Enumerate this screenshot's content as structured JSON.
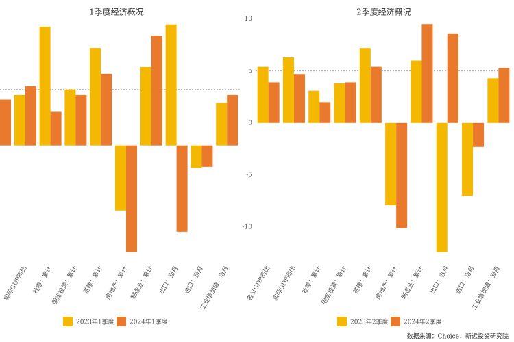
{
  "chart_data": [
    {
      "type": "bar",
      "title": "1季度经济概况",
      "categories": [
        null,
        "实际GDP同比",
        "社零：累计",
        "固定投资：累计",
        "基建：累计",
        "房地产：累计",
        "制造业：累计",
        "出口：当月",
        "进口：当月",
        "工业增加值：当月"
      ],
      "series": [
        {
          "name": "2023年1季度",
          "color": "#f5b800",
          "values": [
            null,
            4.5,
            10.6,
            5.0,
            8.7,
            -5.8,
            7.0,
            10.8,
            -2.0,
            3.8
          ]
        },
        {
          "name": "2024年1季度",
          "color": "#e8792d",
          "values": [
            4.1,
            5.3,
            3.0,
            4.5,
            6.4,
            -9.5,
            9.8,
            -7.7,
            -1.9,
            4.5
          ]
        }
      ],
      "ylim": [
        -11,
        12
      ],
      "reference_line": 5
    },
    {
      "type": "bar",
      "title": "2季度经济概况",
      "categories": [
        "名义GDP同比",
        "实际GDP同比",
        "社零：累计",
        "固定投资：累计",
        "基建：累计",
        "房地产：累计",
        "制造业：累计",
        "出口：当月",
        "进口：当月",
        "工业增加值：当月"
      ],
      "series": [
        {
          "name": "2023年2季度",
          "color": "#f5b800",
          "values": [
            5.4,
            6.3,
            3.1,
            3.8,
            7.2,
            -7.9,
            6.0,
            -12.4,
            -7.0,
            4.3
          ]
        },
        {
          "name": "2024年2季度",
          "color": "#e8792d",
          "values": [
            3.9,
            4.7,
            2.0,
            3.9,
            5.4,
            -10.1,
            9.5,
            8.6,
            -2.3,
            5.3
          ]
        }
      ],
      "ylim": [
        -12.5,
        10.5
      ],
      "yticks": [
        10,
        5,
        0,
        -5,
        -10
      ],
      "reference_line": 5
    }
  ],
  "source": "数据来源：Choice，新远投资研究院"
}
